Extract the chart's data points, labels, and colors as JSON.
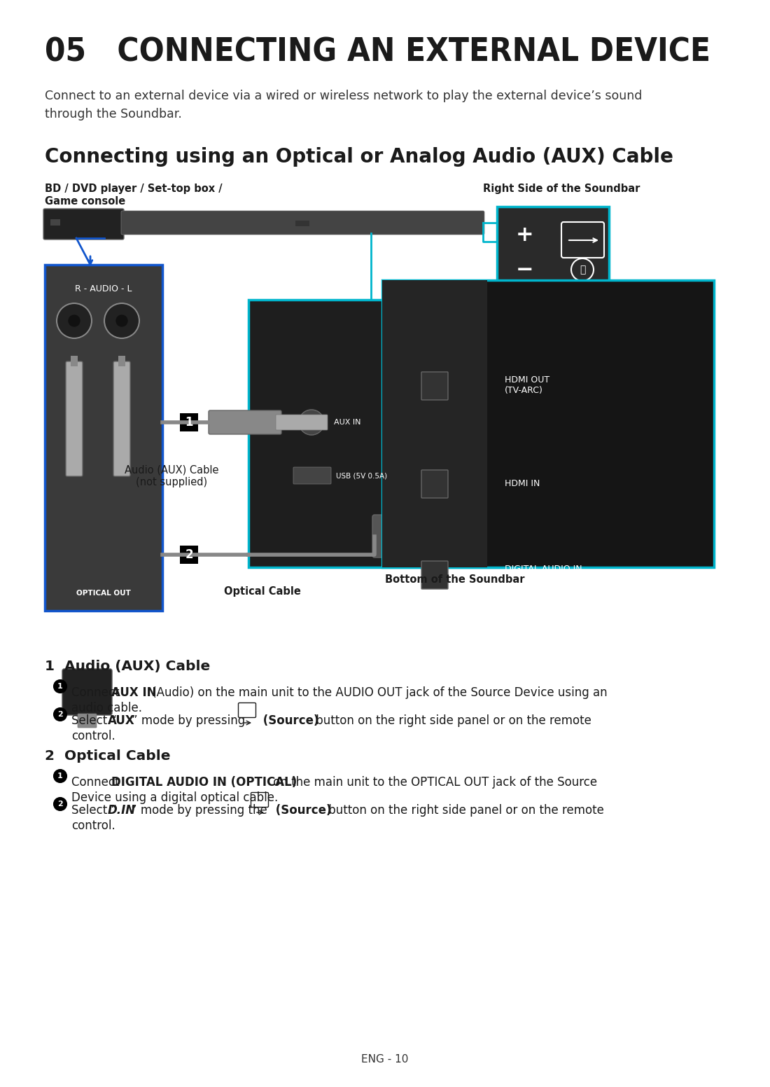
{
  "title": "05   CONNECTING AN EXTERNAL DEVICE",
  "subtitle": "Connect to an external device via a wired or wireless network to play the external device’s sound\nthrough the Soundbar.",
  "section_title": "Connecting using an Optical or Analog Audio (AUX) Cable",
  "label_bd": "BD / DVD player / Set-top box /",
  "label_game": "Game console",
  "label_right_side": "Right Side of the Soundbar",
  "label_bottom": "Bottom of the Soundbar",
  "label_aux_cable_1": "Audio (AUX) Cable",
  "label_aux_cable_2": "(not supplied)",
  "label_optical": "Optical Cable",
  "hdmi_out": "HDMI OUT\n(TV-ARC)",
  "hdmi_in": "HDMI IN",
  "digital_audio": "DIGITAL AUDIO IN\n(OPTICAL)",
  "aux_in_label": "AUX IN",
  "usb_label": "USB (5V 0.5A)",
  "optical_out_label": "OPTICAL OUT",
  "r_audio_l": "R - AUDIO - L",
  "footer": "ENG - 10",
  "bg_color": "#ffffff",
  "text_color": "#1a1a1a",
  "cyan_color": "#00b5cc",
  "blue_color": "#1155cc",
  "dark_panel": "#2d2d2d",
  "darker_panel": "#1a1a1a",
  "mid_gray": "#555555",
  "light_gray": "#888888",
  "soundbar_color": "#555555"
}
